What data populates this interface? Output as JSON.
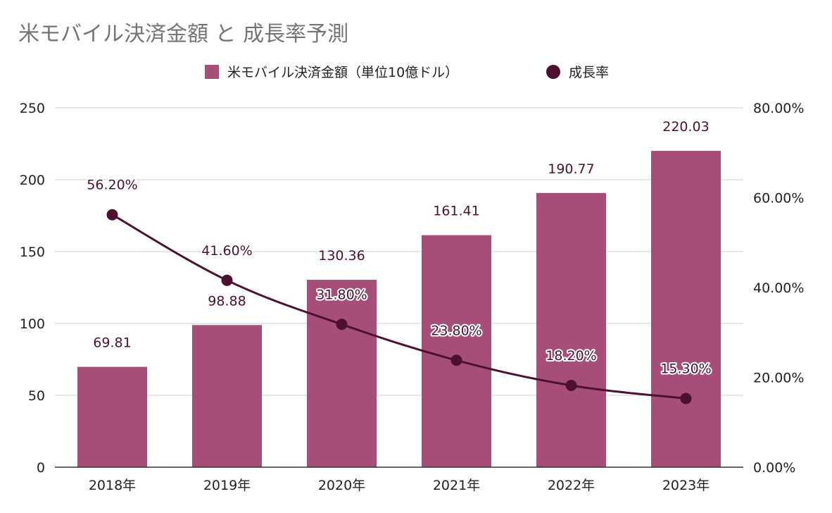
{
  "chart_data": {
    "type": "bar",
    "title": "米モバイル決済金額 と 成長率予測",
    "categories": [
      "2018年",
      "2019年",
      "2020年",
      "2021年",
      "2022年",
      "2023年"
    ],
    "series": [
      {
        "name": "米モバイル決済金額（単位10億ドル）",
        "type": "bar",
        "axis": "left",
        "values": [
          69.81,
          98.88,
          130.36,
          161.41,
          190.77,
          220.03
        ],
        "labels": [
          "69.81",
          "98.88",
          "130.36",
          "161.41",
          "190.77",
          "220.03"
        ],
        "color": "#a64d79"
      },
      {
        "name": "成長率",
        "type": "line",
        "axis": "right",
        "values": [
          56.2,
          41.6,
          31.8,
          23.8,
          18.2,
          15.3
        ],
        "labels": [
          "56.20%",
          "41.60%",
          "31.80%",
          "23.80%",
          "18.20%",
          "15.30%"
        ],
        "color": "#4c1130"
      }
    ],
    "y_left": {
      "range": [
        0,
        250
      ],
      "ticks": [
        0,
        50,
        100,
        150,
        200,
        250
      ],
      "tick_labels": [
        "0",
        "50",
        "100",
        "150",
        "200",
        "250"
      ]
    },
    "y_right": {
      "range": [
        0,
        80
      ],
      "ticks": [
        0,
        20,
        40,
        60,
        80
      ],
      "tick_labels": [
        "0.00%",
        "20.00%",
        "40.00%",
        "60.00%",
        "80.00%"
      ]
    },
    "grid": true,
    "legend_position": "top"
  }
}
